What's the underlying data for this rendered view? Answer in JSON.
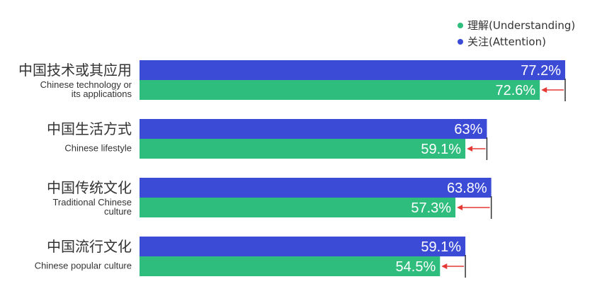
{
  "legend": [
    {
      "label": "理解(Understanding)",
      "color": "#2ebd7d"
    },
    {
      "label": "关注(Attention)",
      "color": "#3c4bd6"
    }
  ],
  "chart_data": {
    "type": "bar",
    "orientation": "horizontal",
    "categories": [
      {
        "zh": "中国技术或其应用",
        "en": [
          "Chinese technology or",
          "its applications"
        ]
      },
      {
        "zh": "中国生活方式",
        "en": [
          "Chinese lifestyle"
        ]
      },
      {
        "zh": "中国传统文化",
        "en": [
          "Traditional Chinese",
          "culture"
        ]
      },
      {
        "zh": "中国流行文化",
        "en": [
          "Chinese popular culture"
        ]
      }
    ],
    "series": [
      {
        "name": "关注(Attention)",
        "color": "#3c4bd6",
        "values": [
          77.2,
          63,
          63.8,
          59.1
        ],
        "labels": [
          "77.2%",
          "63%",
          "63.8%",
          "59.1%"
        ]
      },
      {
        "name": "理解(Understanding)",
        "color": "#2ebd7d",
        "values": [
          72.6,
          59.1,
          57.3,
          54.5
        ],
        "labels": [
          "72.6%",
          "59.1%",
          "57.3%",
          "54.5%"
        ]
      }
    ],
    "gap_arrow_color": "#e53935",
    "legend_position": "top-right",
    "grid": false
  }
}
